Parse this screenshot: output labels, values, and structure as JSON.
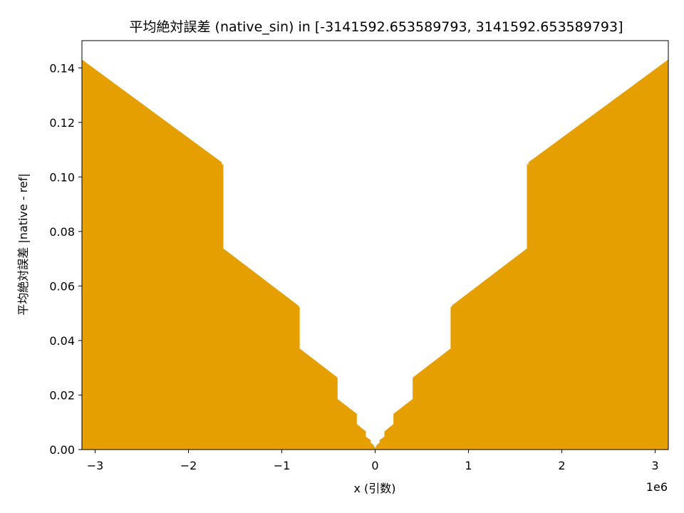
{
  "chart_data": {
    "type": "area",
    "title": "平均絶対誤差 (native_sin) in [-3141592.653589793, 3141592.653589793]",
    "xlabel": "x (引数)",
    "ylabel": "平均絶対誤差 |native - ref|",
    "x_offset_text": "1e6",
    "xlim": [
      -3141592.653589793,
      3141592.653589793
    ],
    "ylim": [
      0,
      0.15
    ],
    "x_scale": 1000000,
    "x_ticks": [
      -3,
      -2,
      -1,
      0,
      1,
      2,
      3
    ],
    "x_tick_labels": [
      "−3",
      "−2",
      "−1",
      "0",
      "1",
      "2",
      "3"
    ],
    "y_ticks": [
      0.0,
      0.02,
      0.04,
      0.06,
      0.08,
      0.1,
      0.12,
      0.14
    ],
    "y_tick_labels": [
      "0.00",
      "0.02",
      "0.04",
      "0.06",
      "0.08",
      "0.10",
      "0.12",
      "0.14"
    ],
    "grid": false,
    "fill_color": "#E69F00",
    "series": [
      {
        "x": [
          -3141592.65,
          -1647000,
          -1647000,
          -1630000,
          -1630000,
          -824000,
          -824000,
          -812000,
          -812000,
          -412000,
          -412000,
          -406000,
          -406000,
          -206000,
          -206000,
          -200000,
          -200000,
          -103000,
          -103000,
          -51000,
          -51000,
          -25000,
          0,
          25000,
          51000,
          51000,
          103000,
          103000,
          200000,
          200000,
          206000,
          206000,
          406000,
          406000,
          412000,
          412000,
          812000,
          812000,
          824000,
          824000,
          1630000,
          1630000,
          1647000,
          1647000,
          3141592.65
        ],
        "y": [
          0.1429,
          0.1053,
          0.1045,
          0.1045,
          0.0737,
          0.0527,
          0.0522,
          0.0522,
          0.037,
          0.0265,
          0.0262,
          0.0262,
          0.0185,
          0.0132,
          0.0131,
          0.0131,
          0.0093,
          0.0066,
          0.0047,
          0.0034,
          0.0024,
          0.0018,
          0.0003,
          0.0018,
          0.0024,
          0.0034,
          0.0047,
          0.0066,
          0.0093,
          0.0131,
          0.0131,
          0.0132,
          0.0185,
          0.0262,
          0.0262,
          0.0265,
          0.037,
          0.0522,
          0.0522,
          0.0527,
          0.0737,
          0.1045,
          0.1045,
          0.1053,
          0.1429
        ]
      }
    ]
  }
}
